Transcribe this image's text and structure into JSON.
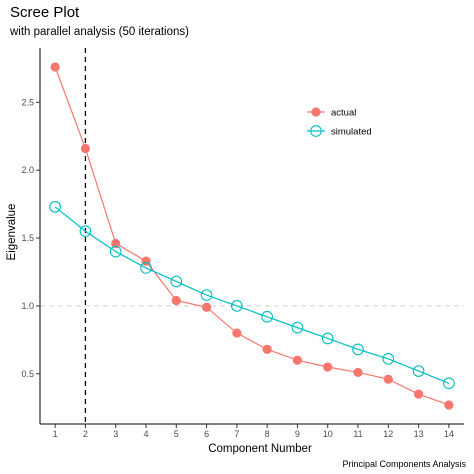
{
  "chart_data": {
    "type": "line",
    "title": "Scree Plot",
    "subtitle": "with parallel analysis (50 iterations)",
    "xlabel": "Component Number",
    "ylabel": "Eigenvalue",
    "caption": "Principal Components Analysis",
    "x": [
      1,
      2,
      3,
      4,
      5,
      6,
      7,
      8,
      9,
      10,
      11,
      12,
      13,
      14
    ],
    "xlim": [
      0.5,
      14.5
    ],
    "ylim": [
      0.13,
      2.9
    ],
    "yticks": [
      0.5,
      1.0,
      1.5,
      2.0,
      2.5
    ],
    "ytick_labels": [
      "0.5",
      "1.0",
      "1.5",
      "2.0",
      "2.5"
    ],
    "reference_hline": 1.0,
    "reference_vline": 2,
    "grid": false,
    "legend_position": "top-right",
    "series": [
      {
        "name": "actual",
        "color": "#F8766D",
        "marker": "filled-circle",
        "values": [
          2.76,
          2.16,
          1.46,
          1.33,
          1.04,
          0.99,
          0.8,
          0.68,
          0.6,
          0.55,
          0.51,
          0.46,
          0.35,
          0.27
        ]
      },
      {
        "name": "simulated",
        "color": "#00BFC4",
        "marker": "open-circle",
        "values": [
          1.73,
          1.55,
          1.4,
          1.28,
          1.18,
          1.08,
          1.0,
          0.92,
          0.84,
          0.76,
          0.68,
          0.61,
          0.52,
          0.43
        ]
      }
    ]
  }
}
